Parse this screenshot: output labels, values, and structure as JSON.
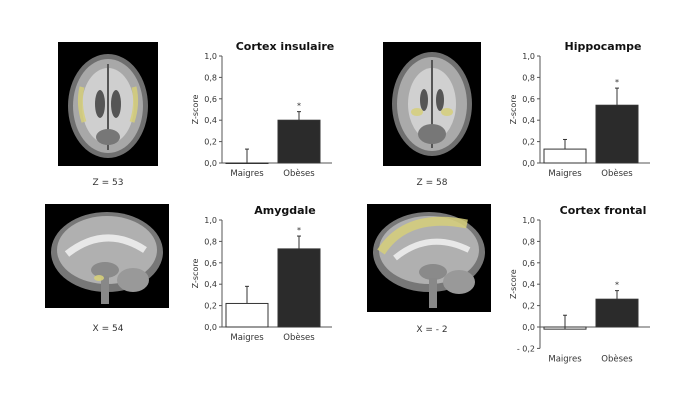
{
  "panels": [
    {
      "scan_label": "Z = 53",
      "chart_title": "Cortex insulaire"
    },
    {
      "scan_label": "Z = 58",
      "chart_title": "Hippocampe"
    },
    {
      "scan_label": "X = 54",
      "chart_title": "Amygdale"
    },
    {
      "scan_label": "X = - 2",
      "chart_title": "Cortex frontal"
    }
  ],
  "colors": {
    "maigres_fill": "#ffffff",
    "obeses_fill": "#2b2b2b",
    "highlight": "#d6cf7a"
  },
  "chart_data": [
    {
      "type": "bar",
      "title": "Cortex insulaire",
      "ylabel": "Z-score",
      "categories": [
        "Maigres",
        "Obèses"
      ],
      "values": [
        0.0,
        0.4
      ],
      "errors": [
        0.13,
        0.08
      ],
      "significance": [
        "",
        "*"
      ],
      "ylim": [
        0.0,
        1.0
      ],
      "yticks": [
        "0,0",
        "0,2",
        "0,4",
        "0,6",
        "0,8",
        "1,0"
      ],
      "ytick_values": [
        0.0,
        0.2,
        0.4,
        0.6,
        0.8,
        1.0
      ]
    },
    {
      "type": "bar",
      "title": "Hippocampe",
      "ylabel": "Z-score",
      "categories": [
        "Maigres",
        "Obèses"
      ],
      "values": [
        0.13,
        0.54
      ],
      "errors": [
        0.09,
        0.16
      ],
      "significance": [
        "",
        "*"
      ],
      "ylim": [
        0.0,
        1.0
      ],
      "yticks": [
        "0,0",
        "0,2",
        "0,4",
        "0,6",
        "0,8",
        "1,0"
      ],
      "ytick_values": [
        0.0,
        0.2,
        0.4,
        0.6,
        0.8,
        1.0
      ]
    },
    {
      "type": "bar",
      "title": "Amygdale",
      "ylabel": "Z-score",
      "categories": [
        "Maigres",
        "Obèses"
      ],
      "values": [
        0.22,
        0.73
      ],
      "errors": [
        0.16,
        0.12
      ],
      "significance": [
        "",
        "*"
      ],
      "ylim": [
        0.0,
        1.0
      ],
      "yticks": [
        "0,0",
        "0,2",
        "0,4",
        "0,6",
        "0,8",
        "1,0"
      ],
      "ytick_values": [
        0.0,
        0.2,
        0.4,
        0.6,
        0.8,
        1.0
      ]
    },
    {
      "type": "bar",
      "title": "Cortex frontal",
      "ylabel": "Z-score",
      "categories": [
        "Maigres",
        "Obèses"
      ],
      "values": [
        -0.02,
        0.26
      ],
      "errors": [
        0.13,
        0.08
      ],
      "significance": [
        "",
        "*"
      ],
      "ylim": [
        -0.2,
        1.0
      ],
      "yticks": [
        "- 0,2",
        "0,0",
        "0,2",
        "0,4",
        "0,6",
        "0,8",
        "1,0"
      ],
      "ytick_values": [
        -0.2,
        0.0,
        0.2,
        0.4,
        0.6,
        0.8,
        1.0
      ]
    }
  ]
}
